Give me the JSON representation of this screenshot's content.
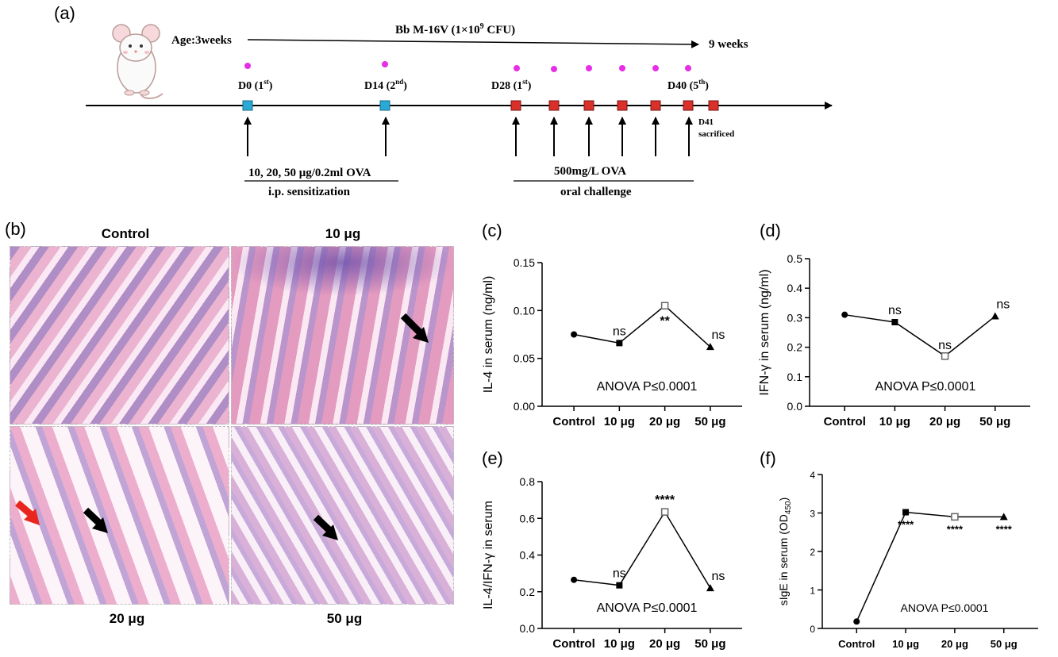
{
  "panel_a": {
    "label": "(a)",
    "age_start": "Age:3weeks",
    "treatment": "Bb M-16V (1×10",
    "treatment_exp": "9",
    "treatment_unit": " CFU)",
    "age_end": "9 weeks",
    "sensitization_days": [
      {
        "day": "D0 (1",
        "sup": "st",
        "close": ")"
      },
      {
        "day": "D14 (2",
        "sup": "nd",
        "close": ")"
      }
    ],
    "challenge_first": {
      "day": "D28 (1",
      "sup": "st",
      "close": ")"
    },
    "challenge_last": {
      "day": "D40 (5",
      "sup": "th",
      "close": ")"
    },
    "sacrifice_day": "D41",
    "sacrifice_label": "sacrificed",
    "sensitization_dose": "10, 20, 50 μg/0.2ml OVA",
    "sensitization_route": "i.p. sensitization",
    "challenge_dose": "500mg/L OVA",
    "challenge_route": "oral challenge",
    "colors": {
      "sensitization": "#29a9d6",
      "challenge": "#d9302a",
      "dot": "#e62ee6"
    }
  },
  "panel_b": {
    "label": "(b)",
    "top_left": "Control",
    "top_right": "10 μg",
    "bottom_left": "20 μg",
    "bottom_right": "50 μg"
  },
  "chart_data": [
    {
      "panel": "(c)",
      "type": "line",
      "categories": [
        "Control",
        "10 μg",
        "20 μg",
        "50 μg"
      ],
      "values": [
        0.075,
        0.066,
        0.105,
        0.062
      ],
      "ylabel": "IL-4 in serum (ng/ml)",
      "ylim": [
        0,
        0.15
      ],
      "yticks": [
        "0.00",
        "0.05",
        "0.10",
        "0.15"
      ],
      "annotations": [
        "",
        "ns",
        "**",
        "ns"
      ],
      "note": "ANOVA P≤0.0001"
    },
    {
      "panel": "(d)",
      "type": "line",
      "categories": [
        "Control",
        "10 μg",
        "20 μg",
        "50 μg"
      ],
      "values": [
        0.31,
        0.285,
        0.17,
        0.305
      ],
      "ylabel": "IFN-γ in serum (ng/ml)",
      "ylim": [
        0,
        0.5
      ],
      "yticks": [
        "0.0",
        "0.1",
        "0.2",
        "0.3",
        "0.4",
        "0.5"
      ],
      "annotations": [
        "",
        "ns",
        "ns",
        "ns"
      ],
      "note": "ANOVA P≤0.0001"
    },
    {
      "panel": "(e)",
      "type": "line",
      "categories": [
        "Control",
        "10 μg",
        "20 μg",
        "50 μg"
      ],
      "values": [
        0.265,
        0.235,
        0.635,
        0.22
      ],
      "ylabel": "IL-4/IFN-γ in serum",
      "ylim": [
        0,
        0.8
      ],
      "yticks": [
        "0.0",
        "0.2",
        "0.4",
        "0.6",
        "0.8"
      ],
      "annotations": [
        "",
        "ns",
        "****",
        "ns"
      ],
      "note": "ANOVA P≤0.0001"
    },
    {
      "panel": "(f)",
      "type": "line",
      "categories": [
        "Control",
        "10 μg",
        "20 μg",
        "50 μg"
      ],
      "values": [
        0.18,
        3.02,
        2.9,
        2.9
      ],
      "ylabel": "sIgE in serum (OD",
      "ylabel_sub": "450",
      "ylabel_close": ")",
      "ylim": [
        0,
        4
      ],
      "yticks": [
        "0",
        "1",
        "2",
        "3",
        "4"
      ],
      "annotations": [
        "",
        "****",
        "****",
        "****"
      ],
      "note": "ANOVA P≤0.0001"
    }
  ]
}
